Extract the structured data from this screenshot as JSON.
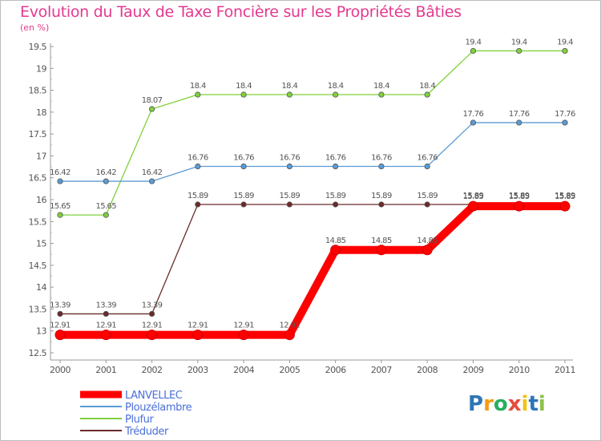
{
  "chart_data": {
    "type": "line",
    "title": "Evolution du Taux de Taxe Foncière sur les Propriétés Bâties",
    "ylabel": "(en %)",
    "xlabel": "",
    "x": [
      "2000",
      "2001",
      "2002",
      "2003",
      "2004",
      "2005",
      "2006",
      "2007",
      "2008",
      "2009",
      "2010",
      "2011"
    ],
    "ylim": [
      12.5,
      19.5
    ],
    "yticks": [
      "12.5",
      "13",
      "13.5",
      "14",
      "14.5",
      "15",
      "15.5",
      "16",
      "16.5",
      "17",
      "17.5",
      "18",
      "18.5",
      "19",
      "19.5"
    ],
    "grid": false,
    "series": [
      {
        "name": "LANVELLEC",
        "color": "#ff0000",
        "emphasis": true,
        "values": [
          12.91,
          12.91,
          12.91,
          12.91,
          12.91,
          12.91,
          14.85,
          14.85,
          14.85,
          15.85,
          15.85,
          15.85
        ],
        "labels": [
          "12.91",
          "12.91",
          "12.91",
          "12.91",
          "12.91",
          "12.91",
          "14.85",
          "14.85",
          "14.85",
          "15.85",
          "15.85",
          "15.85"
        ]
      },
      {
        "name": "Plouzélambre",
        "color": "#5b9bd5",
        "values": [
          16.42,
          16.42,
          16.42,
          16.76,
          16.76,
          16.76,
          16.76,
          16.76,
          16.76,
          17.76,
          17.76,
          17.76
        ],
        "labels": [
          "16.42",
          "16.42",
          "16.42",
          "16.76",
          "16.76",
          "16.76",
          "16.76",
          "16.76",
          "16.76",
          "17.76",
          "17.76",
          "17.76"
        ]
      },
      {
        "name": "Plufur",
        "color": "#7fd13b",
        "values": [
          15.65,
          15.65,
          18.07,
          18.4,
          18.4,
          18.4,
          18.4,
          18.4,
          18.4,
          19.4,
          19.4,
          19.4
        ],
        "labels": [
          "15.65",
          "15.65",
          "18.07",
          "18.4",
          "18.4",
          "18.4",
          "18.4",
          "18.4",
          "18.4",
          "19.4",
          "19.4",
          "19.4"
        ]
      },
      {
        "name": "Tréduder",
        "color": "#6b2a2a",
        "values": [
          13.39,
          13.39,
          13.39,
          15.89,
          15.89,
          15.89,
          15.89,
          15.89,
          15.89,
          15.89,
          15.89,
          15.89
        ],
        "labels": [
          "13.39",
          "13.39",
          "13.39",
          "15.89",
          "15.89",
          "15.89",
          "15.89",
          "15.89",
          "15.89",
          "15.89",
          "15.89",
          "15.89"
        ]
      }
    ],
    "legend_position": "bottom-left"
  },
  "brand": {
    "letters": [
      "P",
      "r",
      "o",
      "x",
      "i",
      "t",
      "i"
    ],
    "colors": [
      "#2e75b6",
      "#f39c12",
      "#27ae60",
      "#e74c3c",
      "#f1c40f",
      "#2e75b6",
      "#8bc34a"
    ]
  }
}
